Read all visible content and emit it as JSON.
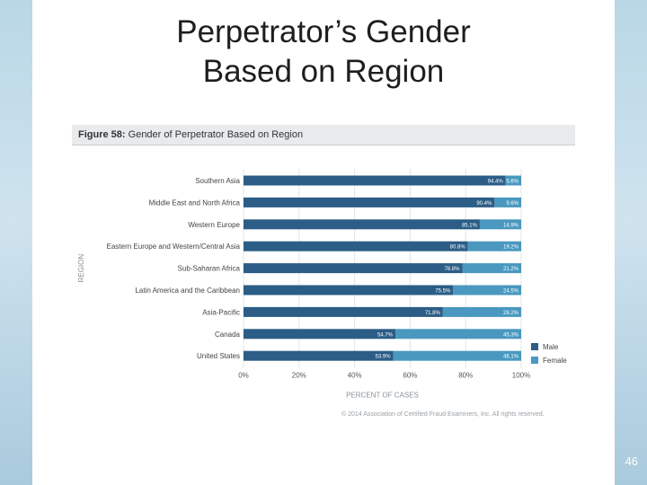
{
  "slide": {
    "title_line1": "Perpetrator’s Gender",
    "title_line2": "Based on Region",
    "page_number": "46"
  },
  "figure": {
    "label": "Figure 58:",
    "caption": "Gender of Perpetrator Based on Region",
    "copyright": "© 2014 Association of Certified Fraud Examiners, Inc. All rights reserved."
  },
  "colors": {
    "male": "#2b5d86",
    "female": "#4a98bf",
    "header_bg": "#e8eaec"
  },
  "chart_data": {
    "type": "bar",
    "orientation": "horizontal",
    "stacked": true,
    "categories": [
      "Southern Asia",
      "Middle East and North Africa",
      "Western Europe",
      "Eastern Europe and Western/Central Asia",
      "Sub-Saharan Africa",
      "Latin America and the Caribbean",
      "Asia-Pacific",
      "Canada",
      "United States"
    ],
    "series": [
      {
        "name": "Male",
        "values": [
          94.4,
          90.4,
          85.1,
          80.8,
          78.8,
          75.5,
          71.8,
          54.7,
          53.9
        ],
        "labels": [
          "94.4%",
          "90.4%",
          "85.1%",
          "80.8%",
          "78.8%",
          "75.5%",
          "71.8%",
          "54.7%",
          "53.9%"
        ]
      },
      {
        "name": "Female",
        "values": [
          5.6,
          9.6,
          14.9,
          19.2,
          21.2,
          24.5,
          28.2,
          45.3,
          46.1
        ],
        "labels": [
          "5.6%",
          "9.6%",
          "14.9%",
          "19.2%",
          "21.2%",
          "24.5%",
          "28.2%",
          "45.3%",
          "46.1%"
        ]
      }
    ],
    "xlabel": "PERCENT OF CASES",
    "ylabel": "REGION",
    "xlim": [
      0,
      100
    ],
    "xticks": [
      "0%",
      "20%",
      "40%",
      "60%",
      "80%",
      "100%"
    ],
    "legend_position": "right",
    "grid": true
  }
}
